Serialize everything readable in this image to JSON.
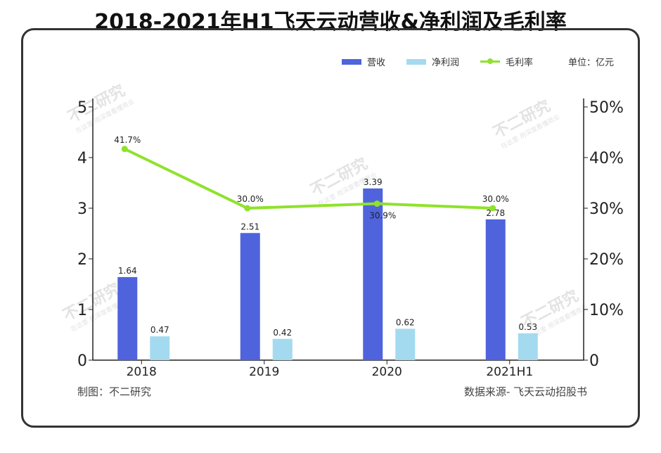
{
  "title": "2018-2021年H1飞天云动营收&净利润及毛利率",
  "unit": "单位：亿元",
  "footer": {
    "left": "制图：不二研究",
    "right": "数据来源- 飞天云动招股书"
  },
  "watermark": {
    "main": "不二研究",
    "sub": "在这里 用深度看懂商业"
  },
  "colors": {
    "revenue": "#4f63dd",
    "net_profit": "#a4daf0",
    "gross_margin": "#8fe22b"
  },
  "chart_data": {
    "type": "bar",
    "categories": [
      "2018",
      "2019",
      "2020",
      "2021H1"
    ],
    "series": [
      {
        "name": "营收",
        "kind": "bar",
        "axis": "left",
        "values": [
          1.64,
          2.51,
          3.39,
          2.78
        ],
        "labels": [
          "1.64",
          "2.51",
          "3.39",
          "2.78"
        ]
      },
      {
        "name": "净利润",
        "kind": "bar",
        "axis": "left",
        "values": [
          0.47,
          0.42,
          0.62,
          0.53
        ],
        "labels": [
          "0.47",
          "0.42",
          "0.62",
          "0.53"
        ]
      },
      {
        "name": "毛利率",
        "kind": "line",
        "axis": "right",
        "values": [
          41.7,
          30.0,
          30.9,
          30.0
        ],
        "labels": [
          "41.7%",
          "30.0%",
          "30.9%",
          "30.0%"
        ]
      }
    ],
    "y_left": {
      "ylim": [
        0,
        5
      ],
      "ticks": [
        "0",
        "1",
        "2",
        "3",
        "4",
        "5"
      ]
    },
    "y_right": {
      "ylim": [
        0,
        50
      ],
      "ticks": [
        "0",
        "10%",
        "20%",
        "30%",
        "40%",
        "50%"
      ]
    },
    "legend": "top-right",
    "grid": false
  }
}
